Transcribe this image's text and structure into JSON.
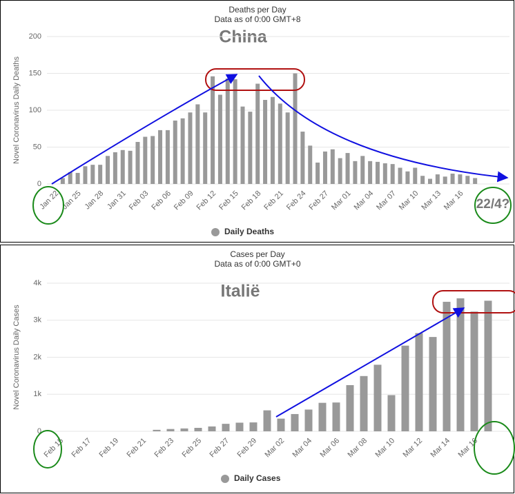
{
  "chart_data": [
    {
      "type": "bar",
      "title": "Deaths per Day",
      "subtitle": "Data as of 0:00 GMT+8",
      "y_label": "Novel Coronavirus Daily Deaths",
      "annotations": [
        "China",
        "22/4?"
      ],
      "categories": [
        "Jan 22",
        null,
        null,
        "Jan 25",
        null,
        null,
        "Jan 28",
        null,
        null,
        "Jan 31",
        null,
        null,
        "Feb 03",
        null,
        null,
        "Feb 06",
        null,
        null,
        "Feb 09",
        null,
        null,
        "Feb 12",
        null,
        null,
        "Feb 15",
        null,
        null,
        "Feb 18",
        null,
        null,
        "Feb 21",
        null,
        null,
        "Feb 24",
        null,
        null,
        "Feb 27",
        null,
        null,
        "Mar 01",
        null,
        null,
        "Mar 04",
        null,
        null,
        "Mar 07",
        null,
        null,
        "Mar 10",
        null,
        null,
        "Mar 13",
        null,
        null,
        "Mar 16",
        null,
        null
      ],
      "series": [
        {
          "name": "Daily Deaths",
          "color": "#999999",
          "values": [
            0,
            8,
            16,
            15,
            24,
            26,
            26,
            38,
            43,
            46,
            45,
            57,
            64,
            65,
            73,
            73,
            86,
            89,
            97,
            108,
            97,
            146,
            121,
            143,
            142,
            105,
            98,
            136,
            114,
            118,
            109,
            97,
            150,
            71,
            52,
            29,
            44,
            47,
            35,
            42,
            31,
            38,
            31,
            30,
            28,
            27,
            22,
            17,
            22,
            11,
            7,
            13,
            10,
            14,
            13,
            11,
            8
          ]
        }
      ],
      "ylim": [
        0,
        200
      ],
      "yticks": [
        0,
        50,
        100,
        150,
        200
      ],
      "grid": true
    },
    {
      "type": "bar",
      "title": "Cases per Day",
      "subtitle": "Data as of 0:00 GMT+0",
      "y_label": "Novel Coronavirus Daily Cases",
      "annotations": [
        "Italië"
      ],
      "categories": [
        "Feb 15",
        null,
        "Feb 17",
        null,
        "Feb 19",
        null,
        "Feb 21",
        null,
        "Feb 23",
        null,
        "Feb 25",
        null,
        "Feb 27",
        null,
        "Feb 29",
        null,
        "Mar 02",
        null,
        "Mar 04",
        null,
        "Mar 06",
        null,
        "Mar 08",
        null,
        "Mar 10",
        null,
        "Mar 12",
        null,
        "Mar 14",
        null,
        "Mar 16",
        null
      ],
      "series": [
        {
          "name": "Daily Cases",
          "color": "#999999",
          "values": [
            0,
            0,
            0,
            0,
            0,
            0,
            0,
            40,
            62,
            77,
            93,
            131,
            202,
            233,
            240,
            566,
            342,
            466,
            587,
            769,
            778,
            1247,
            1492,
            1797,
            977,
            2313,
            2651,
            2547,
            3497,
            3590,
            3233,
            3526
          ]
        }
      ],
      "ylim": [
        0,
        4000
      ],
      "yticks": [
        0,
        {
          "value": 1000,
          "label": "1k"
        },
        {
          "value": 2000,
          "label": "2k"
        },
        {
          "value": 3000,
          "label": "3k"
        },
        {
          "value": 4000,
          "label": "4k"
        }
      ],
      "grid": true
    }
  ]
}
